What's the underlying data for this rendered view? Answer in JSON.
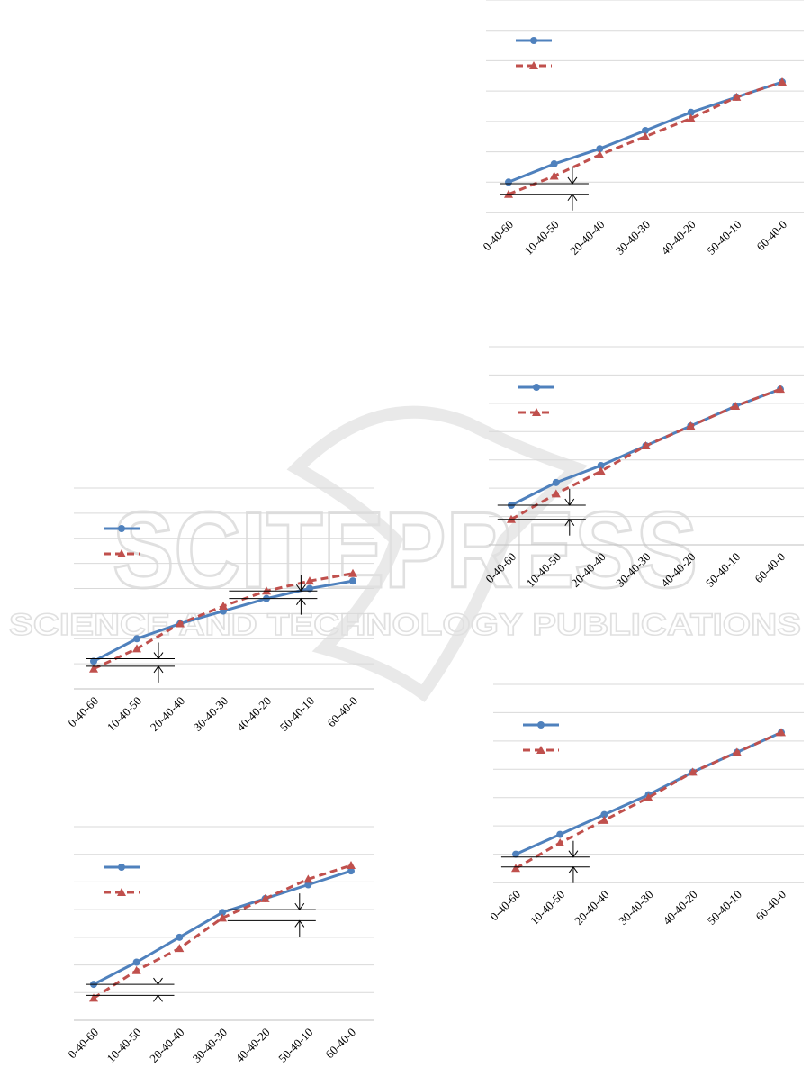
{
  "colors": {
    "series_1": "#4f81bd",
    "series_2": "#c0504d",
    "grid": "#d9d9d9",
    "marker_lines": "#000000",
    "watermark": "#dcdcdc"
  },
  "watermark": {
    "line1": "SCITEPRESS",
    "line2": "SCIENCE AND TECHNOLOGY PUBLICATIONS"
  },
  "chart_data": [
    {
      "id": "bottom-left",
      "type": "line",
      "categories": [
        "0-40-60",
        "10-40-50",
        "20-40-40",
        "30-40-30",
        "40-40-20",
        "50-40-10",
        "60-40-0"
      ],
      "series": [
        {
          "style": "solid-circle",
          "values": [
            1.1,
            2.0,
            2.6,
            3.1,
            3.6,
            4.0,
            4.3
          ]
        },
        {
          "style": "dashed-triangle",
          "values": [
            0.8,
            1.6,
            2.6,
            3.3,
            3.9,
            4.3,
            4.6
          ]
        }
      ],
      "ylim": [
        0,
        8
      ],
      "gridlines": 8,
      "legend": "top-left",
      "annotations": [
        {
          "category_index": 1.5,
          "upper": 1.2,
          "lower": 0.9
        },
        {
          "category_index": 4.8,
          "upper": 3.9,
          "lower": 3.6
        }
      ]
    },
    {
      "id": "middle-left",
      "type": "line",
      "categories": [
        "0-40-60",
        "10-40-50",
        "20-40-40",
        "30-40-30",
        "40-40-20",
        "50-40-10",
        "60-40-0"
      ],
      "series": [
        {
          "style": "solid-circle",
          "values": [
            1.3,
            2.1,
            3.0,
            3.9,
            4.4,
            4.9,
            5.4
          ]
        },
        {
          "style": "dashed-triangle",
          "values": [
            0.8,
            1.8,
            2.6,
            3.7,
            4.4,
            5.1,
            5.6
          ]
        }
      ],
      "ylim": [
        0,
        7
      ],
      "gridlines": 7,
      "legend": "top-left",
      "annotations": [
        {
          "category_index": 1.5,
          "upper": 1.3,
          "lower": 0.9
        },
        {
          "category_index": 4.8,
          "upper": 4.0,
          "lower": 3.6
        }
      ]
    },
    {
      "id": "top-right",
      "type": "line",
      "categories": [
        "0-40-60",
        "10-40-50",
        "20-40-40",
        "30-40-30",
        "40-40-20",
        "50-40-10",
        "60-40-0"
      ],
      "series": [
        {
          "style": "solid-circle",
          "values": [
            1.0,
            1.6,
            2.1,
            2.7,
            3.3,
            3.8,
            4.3
          ]
        },
        {
          "style": "dashed-triangle",
          "values": [
            0.6,
            1.2,
            1.9,
            2.5,
            3.1,
            3.8,
            4.3
          ]
        }
      ],
      "ylim": [
        0,
        7
      ],
      "gridlines": 7,
      "legend": "top-left",
      "annotations": [
        {
          "category_index": 1.4,
          "upper": 0.95,
          "lower": 0.6
        }
      ]
    },
    {
      "id": "middle-right",
      "type": "line",
      "categories": [
        "0-40-60",
        "10-40-50",
        "20-40-40",
        "30-40-30",
        "40-40-20",
        "50-40-10",
        "60-40-0"
      ],
      "series": [
        {
          "style": "solid-circle",
          "values": [
            1.4,
            2.2,
            2.8,
            3.5,
            4.2,
            4.9,
            5.5
          ]
        },
        {
          "style": "dashed-triangle",
          "values": [
            0.9,
            1.8,
            2.6,
            3.5,
            4.2,
            4.9,
            5.5
          ]
        }
      ],
      "ylim": [
        0,
        7
      ],
      "gridlines": 7,
      "legend": "top-left",
      "annotations": [
        {
          "category_index": 1.3,
          "upper": 1.4,
          "lower": 0.9
        }
      ]
    },
    {
      "id": "bottom-right",
      "type": "line",
      "categories": [
        "0-40-60",
        "10-40-50",
        "20-40-40",
        "30-40-30",
        "40-40-20",
        "50-40-10",
        "60-40-0"
      ],
      "series": [
        {
          "style": "solid-circle",
          "values": [
            1.0,
            1.7,
            2.4,
            3.1,
            3.9,
            4.6,
            5.3
          ]
        },
        {
          "style": "dashed-triangle",
          "values": [
            0.5,
            1.4,
            2.2,
            3.0,
            3.9,
            4.6,
            5.3
          ]
        }
      ],
      "ylim": [
        0,
        7
      ],
      "gridlines": 7,
      "legend": "top-left",
      "annotations": [
        {
          "category_index": 1.3,
          "upper": 0.9,
          "lower": 0.55
        }
      ]
    }
  ]
}
